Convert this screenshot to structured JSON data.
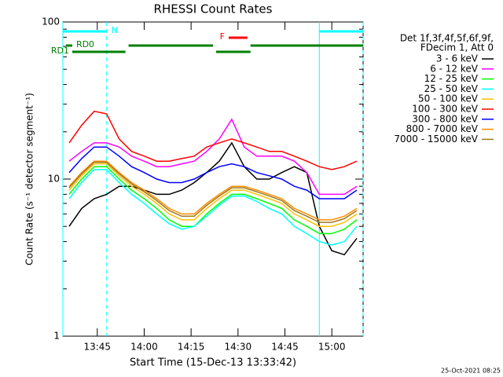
{
  "chart_data": {
    "type": "line",
    "title": "RHESSI Count Rates",
    "xlabel": "Start Time (15-Dec-13 13:33:42)",
    "ylabel": "Count Rate (s⁻¹ detector segment⁻¹)",
    "footer": "25-Oct-2021 08:25",
    "log_y": true,
    "ylim": [
      1,
      100
    ],
    "yticks": [
      1,
      10,
      100
    ],
    "xlim": [
      "13:34",
      "15:10"
    ],
    "xticks": [
      "13:45",
      "14:00",
      "14:15",
      "14:30",
      "14:45",
      "15:00"
    ],
    "legend_header": [
      "Det 1f,3f,4f,5f,6f,9f,",
      "FDecim 1, Att 0"
    ],
    "x": [
      "13:36",
      "13:40",
      "13:44",
      "13:48",
      "13:52",
      "13:56",
      "14:00",
      "14:04",
      "14:08",
      "14:12",
      "14:16",
      "14:20",
      "14:24",
      "14:28",
      "14:32",
      "14:36",
      "14:40",
      "14:44",
      "14:48",
      "14:52",
      "14:56",
      "15:00",
      "15:04",
      "15:08"
    ],
    "series": [
      {
        "name": "3 - 6 keV",
        "color": "#000000",
        "values": [
          5,
          6.5,
          7.5,
          8,
          9,
          9,
          8.5,
          8,
          8,
          8.5,
          9.5,
          11,
          13,
          17,
          12,
          10,
          10,
          11,
          12,
          11,
          5,
          3.5,
          3.3,
          4.2
        ]
      },
      {
        "name": "6 - 12 keV",
        "color": "#ff00ff",
        "values": [
          13,
          15,
          17,
          17,
          16,
          14,
          13,
          12,
          12,
          12.5,
          13,
          15,
          18,
          24,
          16,
          14,
          14,
          14,
          13,
          11,
          8,
          8,
          8,
          9
        ]
      },
      {
        "name": "12 - 25 keV",
        "color": "#00ff00",
        "values": [
          8,
          10,
          12,
          12,
          10,
          8.5,
          7.5,
          6.5,
          5.5,
          5,
          5,
          6,
          7,
          8,
          8,
          7.5,
          7,
          6.5,
          5.5,
          5,
          4.5,
          4.5,
          4.8,
          5.5
        ]
      },
      {
        "name": "25 - 50 keV",
        "color": "#00ffff",
        "values": [
          7.5,
          9.5,
          11.5,
          11.5,
          9.5,
          8,
          7,
          6,
          5.2,
          4.8,
          5,
          5.8,
          6.8,
          7.8,
          7.8,
          7.2,
          6.5,
          6,
          5,
          4.5,
          4,
          3.8,
          4,
          5
        ]
      },
      {
        "name": "50 - 100 keV",
        "color": "#ffc000",
        "values": [
          8.5,
          10.5,
          12.5,
          12.5,
          10.5,
          9,
          8,
          7,
          6,
          5.5,
          5.5,
          6.5,
          7.5,
          8.5,
          8.5,
          8,
          7.5,
          7,
          6,
          5.5,
          5,
          5,
          5.3,
          6
        ]
      },
      {
        "name": "100 - 300 keV",
        "color": "#ff0000",
        "values": [
          17,
          22,
          27,
          26,
          18,
          15,
          14,
          13,
          13,
          13.5,
          14,
          16,
          17,
          18,
          17,
          16,
          15,
          15,
          14,
          13,
          12,
          11.5,
          12,
          13
        ]
      },
      {
        "name": "300 - 800 keV",
        "color": "#0000ff",
        "values": [
          11,
          13.5,
          16,
          16,
          14,
          12,
          11,
          10,
          9.5,
          9.5,
          10,
          11,
          12,
          12.5,
          12,
          11,
          10.5,
          10,
          9,
          8.5,
          7.5,
          7.5,
          7.5,
          8.5
        ]
      },
      {
        "name": "800 - 7000 keV",
        "color": "#ff8c00",
        "values": [
          9,
          11,
          13,
          13,
          11,
          9.5,
          8.5,
          7.5,
          6.5,
          6,
          6,
          7,
          8,
          9,
          9,
          8.5,
          8,
          7.5,
          6.5,
          6,
          5.5,
          5.5,
          5.8,
          6.5
        ]
      },
      {
        "name": "7000 - 15000 keV",
        "color": "#a0781e",
        "values": [
          8.8,
          10.8,
          12.8,
          12.8,
          10.8,
          9.3,
          8.3,
          7.3,
          6.3,
          5.8,
          5.8,
          6.8,
          7.8,
          8.8,
          8.8,
          8.3,
          7.8,
          7.3,
          6.3,
          5.8,
          5.3,
          5.3,
          5.6,
          6.3
        ]
      }
    ],
    "flags": [
      {
        "label": "N",
        "color": "#00ffff",
        "intervals": [
          [
            "13:34",
            "13:48"
          ],
          [
            "14:56",
            "15:10"
          ]
        ]
      },
      {
        "label": "F",
        "color": "#ff0000",
        "intervals": [
          [
            "14:27",
            "14:33"
          ]
        ]
      },
      {
        "label": "RD0",
        "color": "#008000",
        "intervals": [
          [
            "13:35",
            "13:37"
          ],
          [
            "13:55",
            "14:22"
          ],
          [
            "14:34",
            "15:10"
          ]
        ]
      },
      {
        "label": "RD1",
        "color": "#008000",
        "intervals": [
          [
            "13:37",
            "13:54"
          ],
          [
            "14:23",
            "14:34"
          ]
        ]
      }
    ]
  }
}
